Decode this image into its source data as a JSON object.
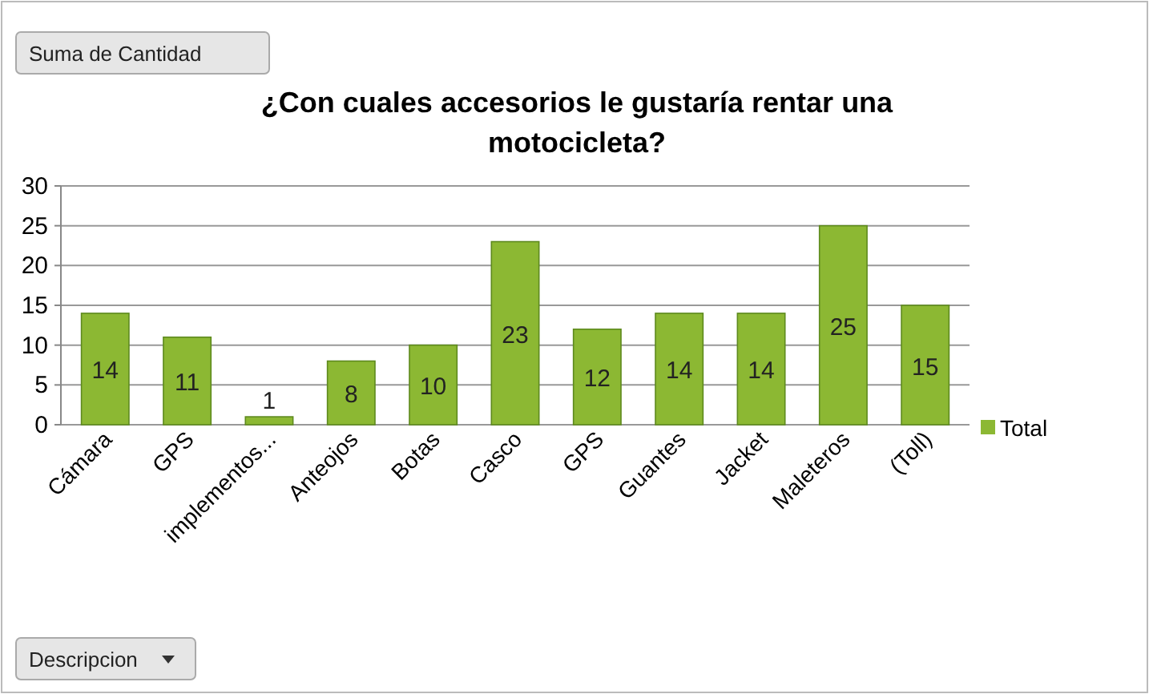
{
  "chart_data": {
    "type": "bar",
    "title": "¿Con cuales accesorios le gustaría rentar una motocicleta?",
    "categories": [
      "Cámara",
      "GPS",
      "implementos...",
      "Anteojos",
      "Botas",
      "Casco",
      "GPS",
      "Guantes",
      "Jacket",
      "Maleteros",
      "(Toll)"
    ],
    "series": [
      {
        "name": "Total",
        "color": "#8cb833",
        "values": [
          14,
          11,
          1,
          8,
          10,
          23,
          12,
          14,
          14,
          25,
          15
        ]
      }
    ],
    "ylim": [
      0,
      30
    ],
    "yticks": [
      0,
      5,
      10,
      15,
      20,
      25,
      30
    ],
    "grid": "y",
    "legend": "right",
    "data_labels": true,
    "annotations": [
      "Suma de Cantidad",
      "Descripcion"
    ]
  }
}
